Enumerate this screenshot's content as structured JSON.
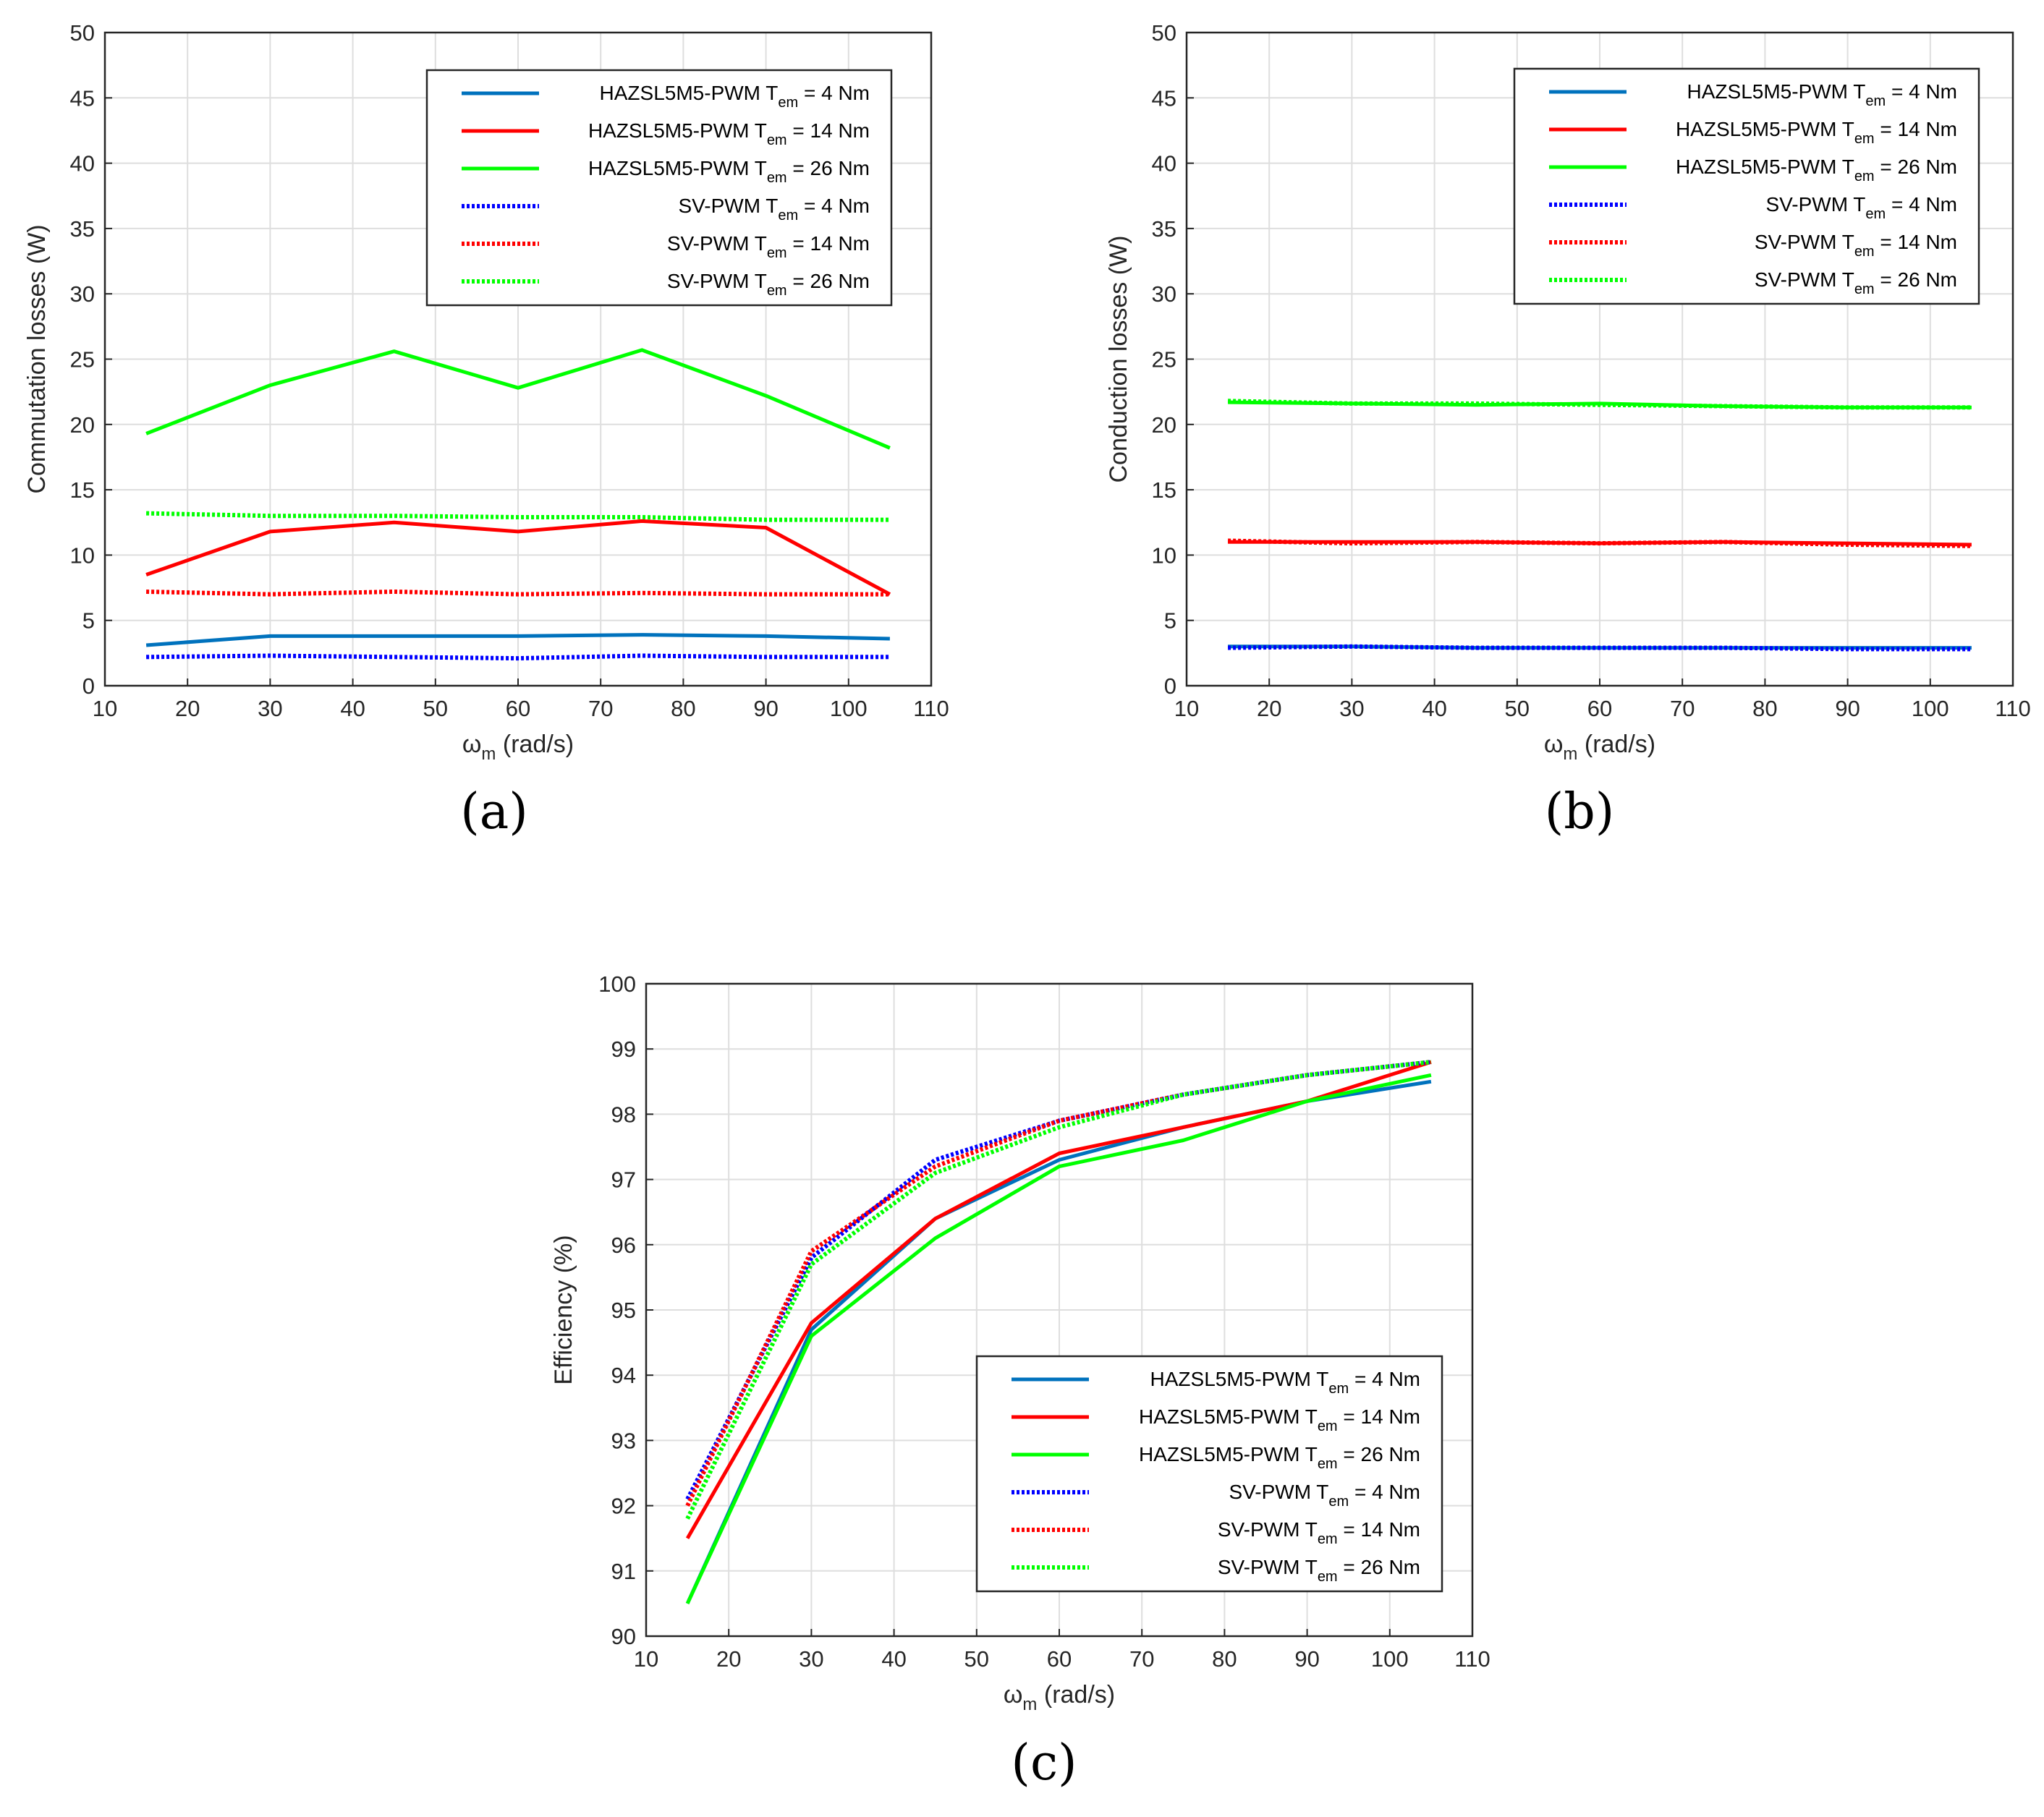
{
  "chart_data": [
    {
      "type": "line",
      "panel_label": "(a)",
      "xlabel_symbol": "ω",
      "xlabel_sub": "m",
      "xlabel_unit": "(rad/s)",
      "ylabel": "Commutation losses (W)",
      "xlim": [
        10,
        110
      ],
      "ylim": [
        0,
        50
      ],
      "xticks": [
        "10",
        "20",
        "30",
        "40",
        "50",
        "60",
        "70",
        "80",
        "90",
        "100",
        "110"
      ],
      "yticks": [
        "0",
        "5",
        "10",
        "15",
        "20",
        "25",
        "30",
        "35",
        "40",
        "45",
        "50"
      ],
      "x": [
        15,
        30,
        45,
        60,
        75,
        90,
        105
      ],
      "grid": true,
      "legend_position": "top-right",
      "series": [
        {
          "name_main": "HAZSL5M5-PWM T",
          "name_sub": "em",
          "name_tail": " = 4 Nm",
          "color": "#0072BD",
          "dash": "solid",
          "values": [
            3.1,
            3.8,
            3.8,
            3.8,
            3.9,
            3.8,
            3.6
          ]
        },
        {
          "name_main": "HAZSL5M5-PWM T",
          "name_sub": "em",
          "name_tail": " = 14 Nm",
          "color": "#FF0000",
          "dash": "solid",
          "values": [
            8.5,
            11.8,
            12.5,
            11.8,
            12.6,
            12.1,
            7.0
          ]
        },
        {
          "name_main": "HAZSL5M5-PWM T",
          "name_sub": "em",
          "name_tail": " = 26 Nm",
          "color": "#00FF00",
          "dash": "solid",
          "values": [
            19.3,
            23.0,
            25.6,
            22.8,
            25.7,
            22.2,
            18.2
          ]
        },
        {
          "name_main": "SV-PWM T",
          "name_sub": "em",
          "name_tail": " = 4 Nm",
          "color": "#0000FF",
          "dash": "dotted",
          "values": [
            2.2,
            2.3,
            2.2,
            2.1,
            2.3,
            2.2,
            2.2
          ]
        },
        {
          "name_main": "SV-PWM T",
          "name_sub": "em",
          "name_tail": " = 14 Nm",
          "color": "#FF0000",
          "dash": "dotted",
          "values": [
            7.2,
            7.0,
            7.2,
            7.0,
            7.1,
            7.0,
            7.0
          ]
        },
        {
          "name_main": "SV-PWM T",
          "name_sub": "em",
          "name_tail": " = 26 Nm",
          "color": "#00FF00",
          "dash": "dotted",
          "values": [
            13.2,
            13.0,
            13.0,
            12.9,
            12.9,
            12.7,
            12.7
          ]
        }
      ]
    },
    {
      "type": "line",
      "panel_label": "(b)",
      "xlabel_symbol": "ω",
      "xlabel_sub": "m",
      "xlabel_unit": "(rad/s)",
      "ylabel": "Conduction losses (W)",
      "xlim": [
        10,
        110
      ],
      "ylim": [
        0,
        50
      ],
      "xticks": [
        "10",
        "20",
        "30",
        "40",
        "50",
        "60",
        "70",
        "80",
        "90",
        "100",
        "110"
      ],
      "yticks": [
        "0",
        "5",
        "10",
        "15",
        "20",
        "25",
        "30",
        "35",
        "40",
        "45",
        "50"
      ],
      "x": [
        15,
        30,
        45,
        60,
        75,
        90,
        105
      ],
      "grid": true,
      "legend_position": "top-right",
      "series": [
        {
          "name_main": "HAZSL5M5-PWM T",
          "name_sub": "em",
          "name_tail": " = 4 Nm",
          "color": "#0072BD",
          "dash": "solid",
          "values": [
            3.0,
            3.0,
            2.9,
            2.9,
            2.9,
            2.9,
            2.9
          ]
        },
        {
          "name_main": "HAZSL5M5-PWM T",
          "name_sub": "em",
          "name_tail": " = 14 Nm",
          "color": "#FF0000",
          "dash": "solid",
          "values": [
            11.0,
            11.0,
            11.0,
            10.9,
            11.0,
            10.9,
            10.8
          ]
        },
        {
          "name_main": "HAZSL5M5-PWM T",
          "name_sub": "em",
          "name_tail": " = 26 Nm",
          "color": "#00FF00",
          "dash": "solid",
          "values": [
            21.7,
            21.6,
            21.5,
            21.6,
            21.4,
            21.3,
            21.3
          ]
        },
        {
          "name_main": "SV-PWM T",
          "name_sub": "em",
          "name_tail": " = 4 Nm",
          "color": "#0000FF",
          "dash": "dotted",
          "values": [
            2.9,
            3.0,
            2.9,
            2.9,
            2.9,
            2.8,
            2.8
          ]
        },
        {
          "name_main": "SV-PWM T",
          "name_sub": "em",
          "name_tail": " = 14 Nm",
          "color": "#FF0000",
          "dash": "dotted",
          "values": [
            11.1,
            10.9,
            11.0,
            10.9,
            11.0,
            10.8,
            10.7
          ]
        },
        {
          "name_main": "SV-PWM T",
          "name_sub": "em",
          "name_tail": " = 26 Nm",
          "color": "#00FF00",
          "dash": "dotted",
          "values": [
            21.8,
            21.6,
            21.6,
            21.5,
            21.4,
            21.3,
            21.3
          ]
        }
      ]
    },
    {
      "type": "line",
      "panel_label": "(c)",
      "xlabel_symbol": "ω",
      "xlabel_sub": "m",
      "xlabel_unit": "(rad/s)",
      "ylabel": "Efficiency (%)",
      "xlim": [
        10,
        110
      ],
      "ylim": [
        90,
        100
      ],
      "xticks": [
        "10",
        "20",
        "30",
        "40",
        "50",
        "60",
        "70",
        "80",
        "90",
        "100",
        "110"
      ],
      "yticks": [
        "90",
        "91",
        "92",
        "93",
        "94",
        "95",
        "96",
        "97",
        "98",
        "99",
        "100"
      ],
      "x": [
        15,
        30,
        45,
        60,
        75,
        90,
        105
      ],
      "grid": true,
      "legend_position": "bottom-right",
      "series": [
        {
          "name_main": "HAZSL5M5-PWM T",
          "name_sub": "em",
          "name_tail": " = 4 Nm",
          "color": "#0072BD",
          "dash": "solid",
          "values": [
            90.5,
            94.7,
            96.4,
            97.3,
            97.8,
            98.2,
            98.5
          ]
        },
        {
          "name_main": "HAZSL5M5-PWM T",
          "name_sub": "em",
          "name_tail": " = 14 Nm",
          "color": "#FF0000",
          "dash": "solid",
          "values": [
            91.5,
            94.8,
            96.4,
            97.4,
            97.8,
            98.2,
            98.8
          ]
        },
        {
          "name_main": "HAZSL5M5-PWM T",
          "name_sub": "em",
          "name_tail": " = 26 Nm",
          "color": "#00FF00",
          "dash": "solid",
          "values": [
            90.5,
            94.6,
            96.1,
            97.2,
            97.6,
            98.2,
            98.6
          ]
        },
        {
          "name_main": "SV-PWM T",
          "name_sub": "em",
          "name_tail": " = 4 Nm",
          "color": "#0000FF",
          "dash": "dotted",
          "values": [
            92.1,
            95.8,
            97.3,
            97.9,
            98.3,
            98.6,
            98.8
          ]
        },
        {
          "name_main": "SV-PWM T",
          "name_sub": "em",
          "name_tail": " = 14 Nm",
          "color": "#FF0000",
          "dash": "dotted",
          "values": [
            92.0,
            95.9,
            97.2,
            97.9,
            98.3,
            98.6,
            98.8
          ]
        },
        {
          "name_main": "SV-PWM T",
          "name_sub": "em",
          "name_tail": " = 26 Nm",
          "color": "#00FF00",
          "dash": "dotted",
          "values": [
            91.8,
            95.7,
            97.1,
            97.8,
            98.3,
            98.6,
            98.8
          ]
        }
      ]
    }
  ]
}
